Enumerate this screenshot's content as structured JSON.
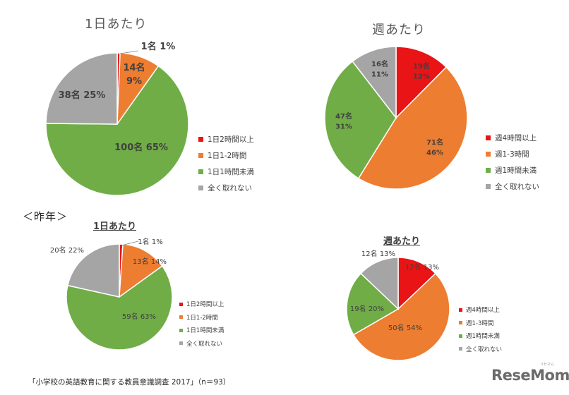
{
  "colors": {
    "red": "#e81416",
    "orange": "#ed7d31",
    "green": "#70ad47",
    "gray": "#a5a5a5",
    "text": "#404040",
    "white": "#ffffff"
  },
  "last_year_heading": "＜昨年＞",
  "source_note": "「小学校の英語教育に関する教員意識調査 2017」（n＝93）",
  "logo": {
    "main": "ReseMom",
    "small": "リセマム"
  },
  "chart_data": [
    {
      "type": "pie",
      "title": "1日あたり",
      "categories": [
        "1日2時間以上",
        "1日1-2時間",
        "1日1時間未満",
        "全く取れない"
      ],
      "values": [
        1,
        14,
        100,
        38
      ],
      "data_labels": [
        "1名 1%",
        "14名 9%",
        "100名 65%",
        "38名 25%"
      ],
      "legend_position": "right",
      "legend_labels": [
        "1日2時間以上",
        "1日1-2時間",
        "1日1時間未満",
        "全く取れない"
      ]
    },
    {
      "type": "pie",
      "title": "週あたり",
      "categories": [
        "週4時間以上",
        "週1-3時間",
        "週1時間未満",
        "全く取れない"
      ],
      "values": [
        19,
        71,
        47,
        16
      ],
      "data_labels": [
        "19名 12%",
        "71名 46%",
        "47名 31%",
        "16名 11%"
      ],
      "legend_position": "right",
      "legend_labels": [
        "週4時間以上",
        "週1-3時間",
        "週1時間未満",
        "全く取れない"
      ]
    },
    {
      "type": "pie",
      "title": "1日あたり",
      "categories": [
        "1日2時間以上",
        "1日1-2時間",
        "1日1時間未満",
        "全く取れない"
      ],
      "values": [
        1,
        13,
        59,
        20
      ],
      "data_labels": [
        "1名 1%",
        "13名 14%",
        "59名 63%",
        "20名 22%"
      ],
      "legend_position": "right",
      "legend_labels": [
        "1日2時間以上",
        "1日1-2時間",
        "1日1時間未満",
        "全く取れない"
      ]
    },
    {
      "type": "pie",
      "title": "週あたり",
      "categories": [
        "週4時間以上",
        "週1-3時間",
        "週1時間未満",
        "全く取れない"
      ],
      "values": [
        12,
        50,
        19,
        12
      ],
      "data_labels": [
        "12名 13%",
        "50名 54%",
        "19名 20%",
        "12名 13%"
      ],
      "legend_position": "right",
      "legend_labels": [
        "週4時間以上",
        "週1-3時間",
        "週1時間未満",
        "全く取れない"
      ]
    }
  ]
}
